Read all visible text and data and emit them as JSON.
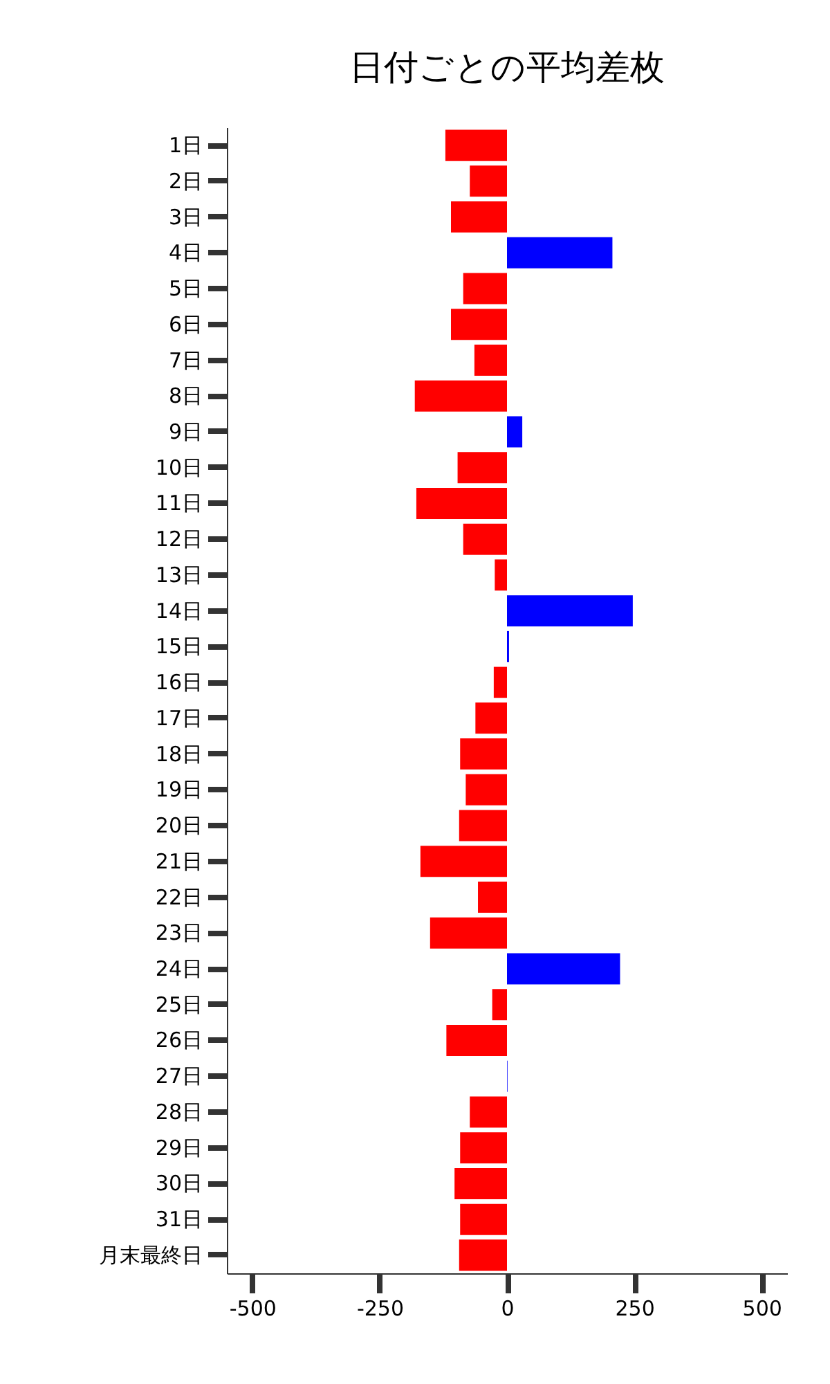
{
  "chart_data": {
    "type": "bar",
    "orientation": "horizontal",
    "title": "日付ごとの平均差枚",
    "categories": [
      "1日",
      "2日",
      "3日",
      "4日",
      "5日",
      "6日",
      "7日",
      "8日",
      "9日",
      "10日",
      "11日",
      "12日",
      "13日",
      "14日",
      "15日",
      "16日",
      "17日",
      "18日",
      "19日",
      "20日",
      "21日",
      "22日",
      "23日",
      "24日",
      "25日",
      "26日",
      "27日",
      "28日",
      "29日",
      "30日",
      "31日",
      "月末最終日"
    ],
    "values": [
      -121,
      -73,
      -110,
      207,
      -86,
      -110,
      -64,
      -181,
      30,
      -97,
      -178,
      -86,
      -24,
      247,
      4,
      -26,
      -62,
      -92,
      -81,
      -94,
      -170,
      -57,
      -151,
      222,
      -29,
      -119,
      1,
      -73,
      -92,
      -103,
      -92,
      -94
    ],
    "colors": [
      "#ff0000",
      "#ff0000",
      "#ff0000",
      "#0000ff",
      "#ff0000",
      "#ff0000",
      "#ff0000",
      "#ff0000",
      "#0000ff",
      "#ff0000",
      "#ff0000",
      "#ff0000",
      "#ff0000",
      "#0000ff",
      "#0000ff",
      "#ff0000",
      "#ff0000",
      "#ff0000",
      "#ff0000",
      "#ff0000",
      "#ff0000",
      "#ff0000",
      "#ff0000",
      "#0000ff",
      "#ff0000",
      "#ff0000",
      "#0000ff",
      "#ff0000",
      "#ff0000",
      "#ff0000",
      "#ff0000",
      "#ff0000"
    ],
    "xlim": [
      -550,
      550
    ],
    "xticks": [
      -500,
      -250,
      0,
      250,
      500
    ],
    "grid": false
  }
}
